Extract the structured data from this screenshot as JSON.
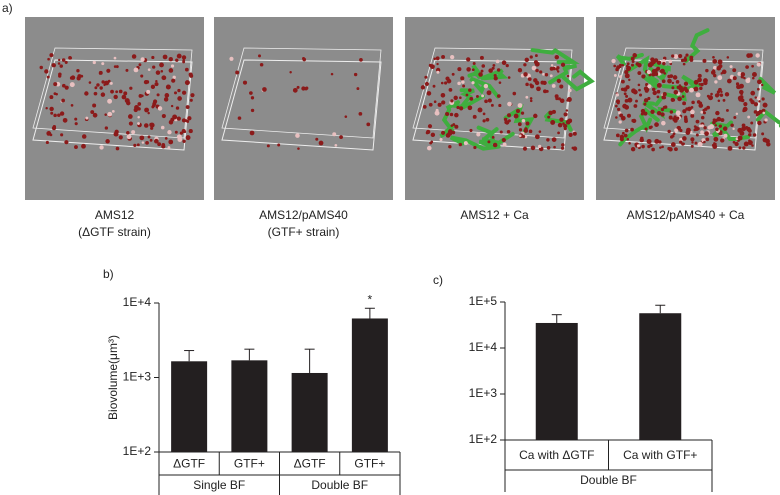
{
  "figure": {
    "label": "a)",
    "images": [
      {
        "caption": [
          "AMS12",
          "(ΔGTF strain)"
        ]
      },
      {
        "caption": [
          "AMS12/pAMS40",
          "(GTF+ strain)"
        ]
      },
      {
        "caption": [
          "AMS12 + Ca"
        ]
      },
      {
        "caption": [
          "AMS12/pAMS40 + Ca"
        ]
      }
    ]
  },
  "chart_data": [
    {
      "type": "bar",
      "panel_label": "b)",
      "y_label": "Biovolume(μm³)",
      "log_scale": true,
      "categories": [
        "ΔGTF",
        "GTF+",
        "ΔGTF",
        "GTF+"
      ],
      "groups": [
        "Single BF",
        "Double BF"
      ],
      "values": [
        1650,
        1700,
        1150,
        6200
      ],
      "errors": [
        650,
        700,
        1250,
        2300
      ],
      "annotation_labels": [
        null,
        null,
        null,
        "*"
      ],
      "color": "#231f20",
      "ylim": [
        100,
        10000
      ],
      "yticks": [
        {
          "value": 100,
          "label": "1E+2"
        },
        {
          "value": 1000,
          "label": "1E+3"
        },
        {
          "value": 10000,
          "label": "1E+4"
        }
      ]
    },
    {
      "type": "bar",
      "panel_label": "c)",
      "log_scale": true,
      "categories": [
        "Ca with ΔGTF",
        "Ca with GTF+"
      ],
      "groups": [
        "Double BF"
      ],
      "values": [
        35000,
        57000
      ],
      "errors": [
        18000,
        28000
      ],
      "color": "#231f20",
      "ylim": [
        100,
        100000
      ],
      "yticks": [
        {
          "value": 100,
          "label": "1E+2"
        },
        {
          "value": 1000,
          "label": "1E+3"
        },
        {
          "value": 10000,
          "label": "1E+4"
        },
        {
          "value": 100000,
          "label": "1E+5"
        }
      ]
    }
  ]
}
